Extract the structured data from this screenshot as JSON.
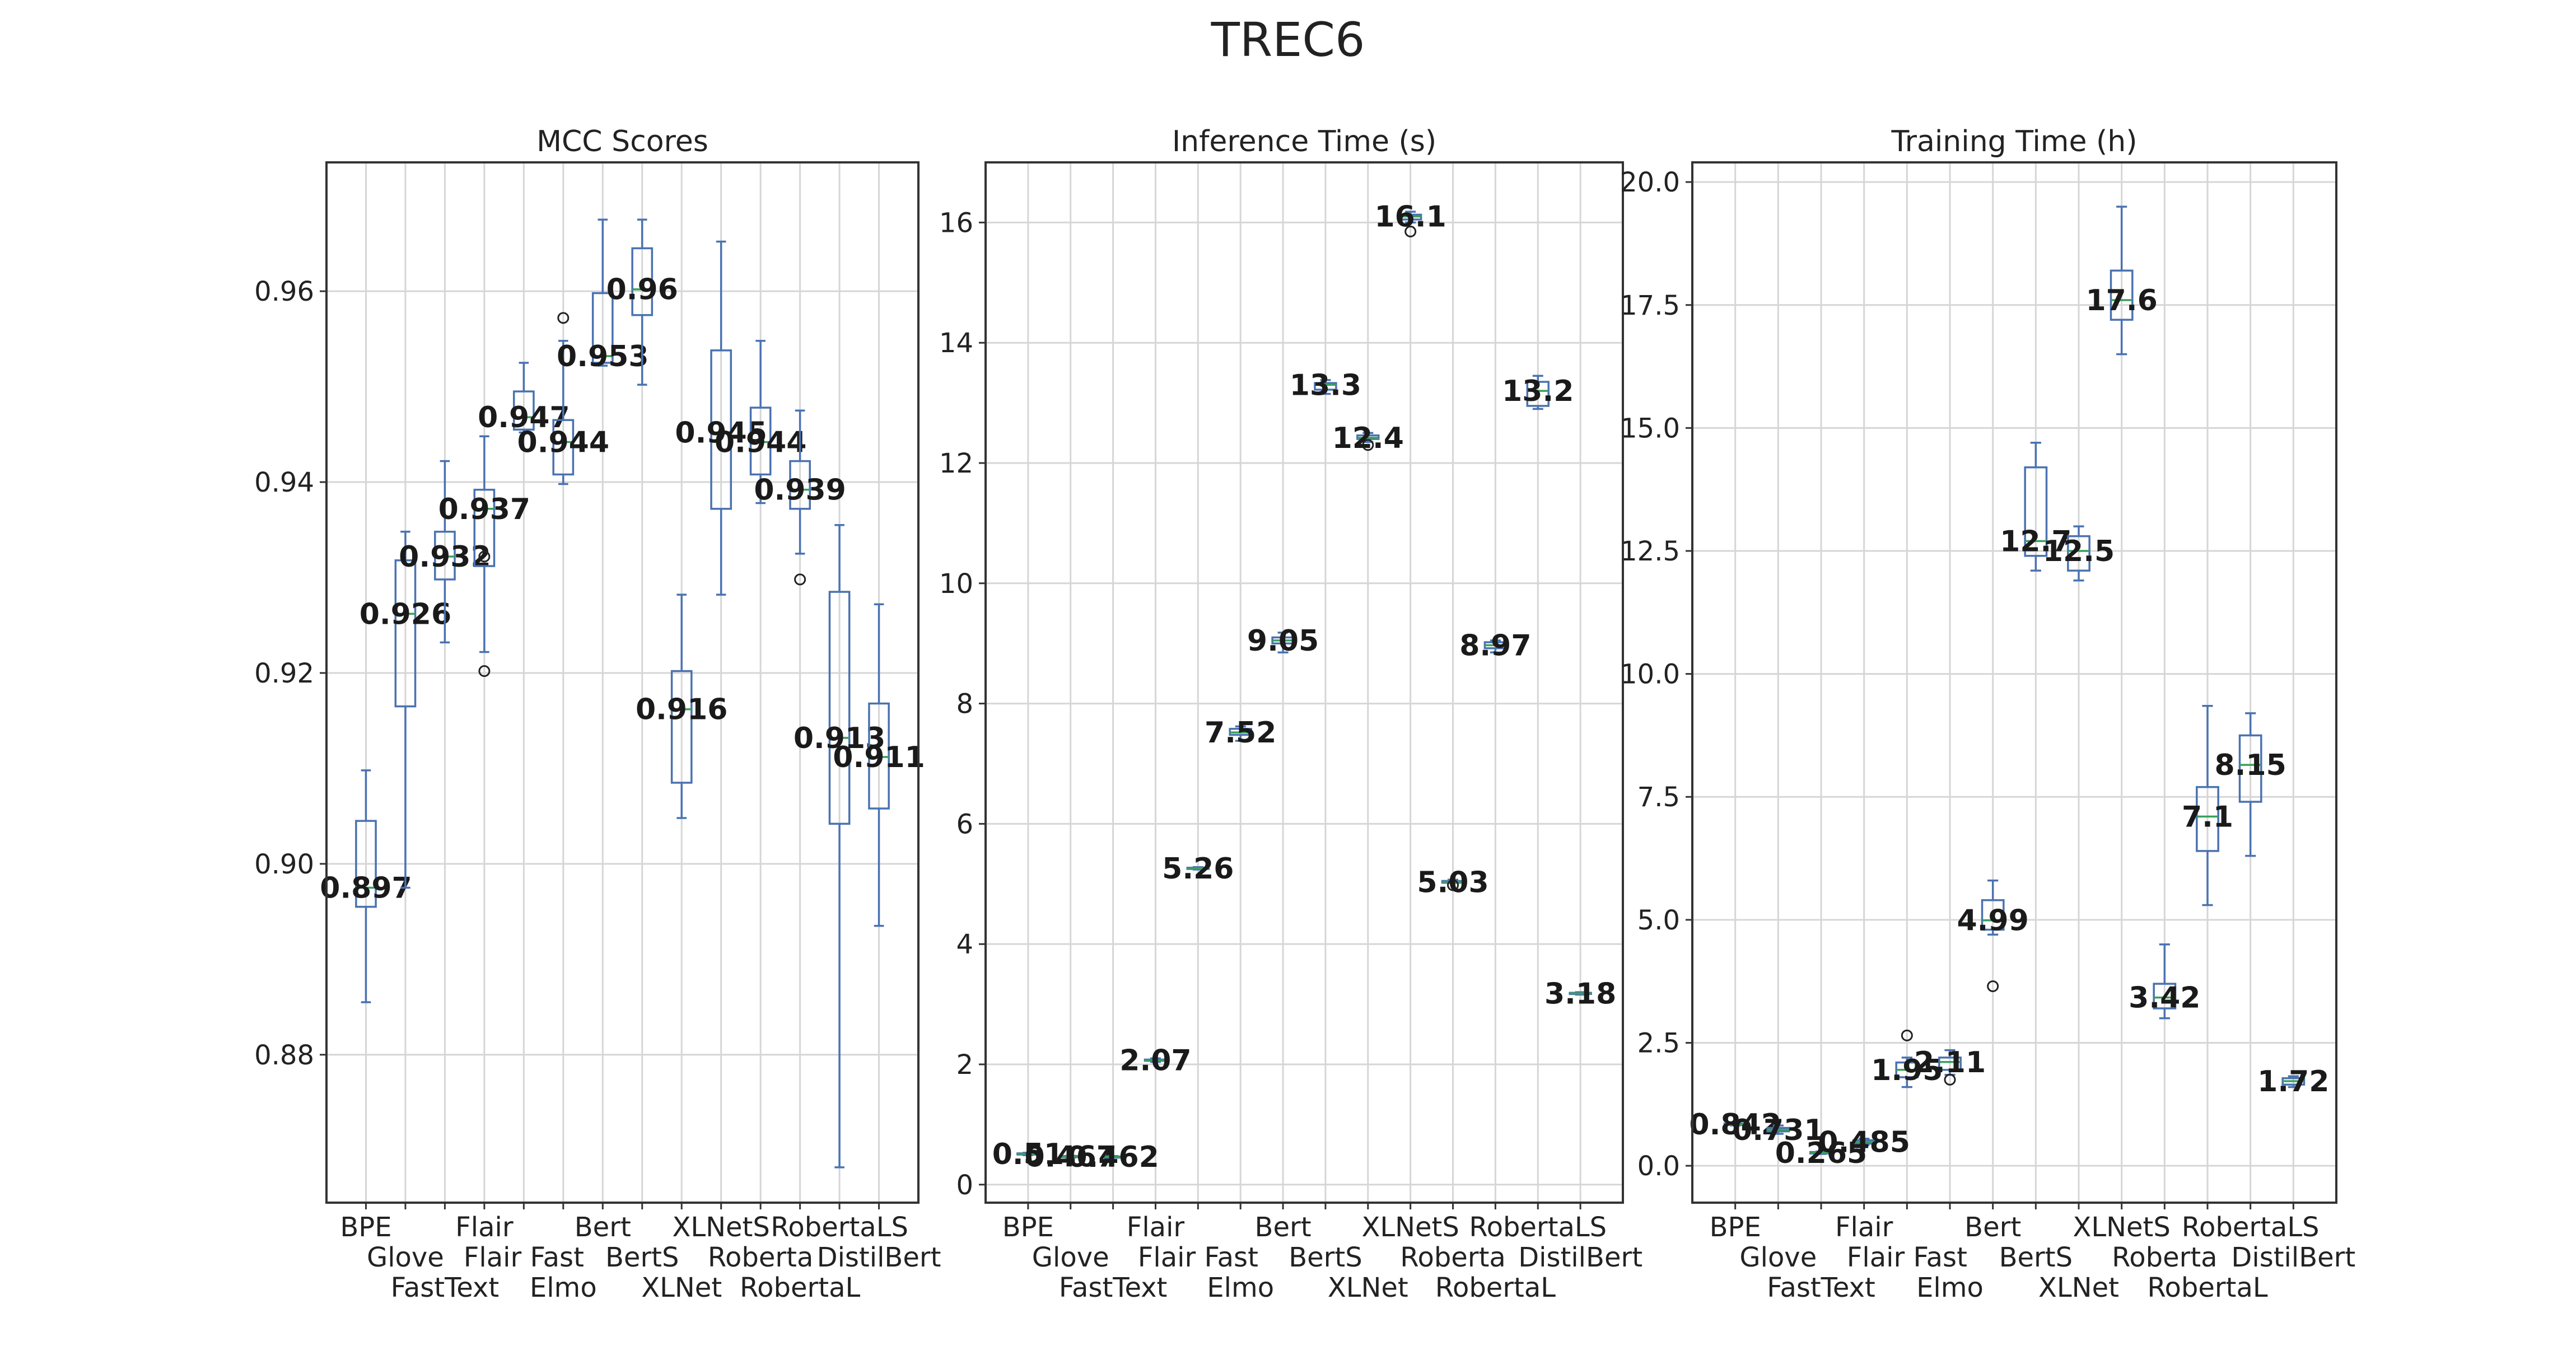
{
  "title": "TREC6",
  "chart_data": [
    {
      "type": "box",
      "title": "MCC Scores",
      "categories": [
        "BPE",
        "Glove",
        "FastText",
        "Flair",
        "Flair Fast",
        "Elmo",
        "Bert",
        "BertS",
        "XLNet",
        "XLNetS",
        "Roberta",
        "RobertaL",
        "RobertaLS",
        "DistilBert"
      ],
      "yticks": [
        "0.88",
        "0.90",
        "0.92",
        "0.94",
        "0.96"
      ],
      "ylim": [
        0.8645,
        0.9735
      ],
      "grid": true,
      "boxes": [
        {
          "whislo": 0.8855,
          "q1": 0.8955,
          "med": 0.8975,
          "q3": 0.9045,
          "whishi": 0.9098,
          "fliers": [],
          "label": "0.897"
        },
        {
          "whislo": 0.8975,
          "q1": 0.9165,
          "med": 0.9262,
          "q3": 0.9318,
          "whishi": 0.9348,
          "fliers": [],
          "label": "0.926"
        },
        {
          "whislo": 0.9232,
          "q1": 0.9298,
          "med": 0.9322,
          "q3": 0.9348,
          "whishi": 0.9422,
          "fliers": [],
          "label": "0.932"
        },
        {
          "whislo": 0.9222,
          "q1": 0.9312,
          "med": 0.9372,
          "q3": 0.9392,
          "whishi": 0.9448,
          "fliers": [
            0.9322,
            0.9202
          ],
          "label": "0.937"
        },
        {
          "whislo": 0.9452,
          "q1": 0.9455,
          "med": 0.9468,
          "q3": 0.9495,
          "whishi": 0.9525,
          "fliers": [],
          "label": "0.947"
        },
        {
          "whislo": 0.9398,
          "q1": 0.9408,
          "med": 0.9442,
          "q3": 0.9465,
          "whishi": 0.9548,
          "fliers": [
            0.9572
          ],
          "label": "0.944"
        },
        {
          "whislo": 0.9522,
          "q1": 0.9525,
          "med": 0.9532,
          "q3": 0.9598,
          "whishi": 0.9675,
          "fliers": [],
          "label": "0.953"
        },
        {
          "whislo": 0.9502,
          "q1": 0.9575,
          "med": 0.9602,
          "q3": 0.9645,
          "whishi": 0.9675,
          "fliers": [],
          "label": "0.96"
        },
        {
          "whislo": 0.9048,
          "q1": 0.9085,
          "med": 0.9162,
          "q3": 0.9202,
          "whishi": 0.9282,
          "fliers": [],
          "label": "0.916"
        },
        {
          "whislo": 0.9282,
          "q1": 0.9372,
          "med": 0.9452,
          "q3": 0.9538,
          "whishi": 0.9652,
          "fliers": [],
          "label": "0.945"
        },
        {
          "whislo": 0.9378,
          "q1": 0.9408,
          "med": 0.9442,
          "q3": 0.9478,
          "whishi": 0.9548,
          "fliers": [],
          "label": "0.944"
        },
        {
          "whislo": 0.9325,
          "q1": 0.9372,
          "med": 0.9392,
          "q3": 0.9422,
          "whishi": 0.9475,
          "fliers": [
            0.9298
          ],
          "label": "0.939"
        },
        {
          "whislo": 0.8682,
          "q1": 0.9042,
          "med": 0.9132,
          "q3": 0.9285,
          "whishi": 0.9355,
          "fliers": [],
          "label": "0.913"
        },
        {
          "whislo": 0.8935,
          "q1": 0.9058,
          "med": 0.9112,
          "q3": 0.9168,
          "whishi": 0.9272,
          "fliers": [],
          "label": "0.911"
        }
      ]
    },
    {
      "type": "box",
      "title": "Inference Time (s)",
      "categories": [
        "BPE",
        "Glove",
        "FastText",
        "Flair",
        "Flair Fast",
        "Elmo",
        "Bert",
        "BertS",
        "XLNet",
        "XLNetS",
        "Roberta",
        "RobertaL",
        "RobertaLS",
        "DistilBert"
      ],
      "yticks": [
        "0",
        "2",
        "4",
        "6",
        "8",
        "10",
        "12",
        "14",
        "16"
      ],
      "ylim": [
        -0.3,
        17.0
      ],
      "grid": true,
      "boxes": [
        {
          "whislo": 0.49,
          "q1": 0.5,
          "med": 0.51,
          "q3": 0.52,
          "whishi": 0.53,
          "fliers": [],
          "label": "0.51"
        },
        {
          "whislo": 0.45,
          "q1": 0.46,
          "med": 0.467,
          "q3": 0.475,
          "whishi": 0.48,
          "fliers": [],
          "label": "0.467"
        },
        {
          "whislo": 0.45,
          "q1": 0.455,
          "med": 0.462,
          "q3": 0.468,
          "whishi": 0.475,
          "fliers": [],
          "label": "0.462"
        },
        {
          "whislo": 2.04,
          "q1": 2.06,
          "med": 2.07,
          "q3": 2.08,
          "whishi": 2.1,
          "fliers": [],
          "label": "2.07"
        },
        {
          "whislo": 5.24,
          "q1": 5.25,
          "med": 5.26,
          "q3": 5.27,
          "whishi": 5.28,
          "fliers": [],
          "label": "5.26"
        },
        {
          "whislo": 7.38,
          "q1": 7.48,
          "med": 7.52,
          "q3": 7.58,
          "whishi": 7.62,
          "fliers": [],
          "label": "7.52"
        },
        {
          "whislo": 8.85,
          "q1": 9.0,
          "med": 9.05,
          "q3": 9.1,
          "whishi": 9.18,
          "fliers": [],
          "label": "9.05"
        },
        {
          "whislo": 13.15,
          "q1": 13.22,
          "med": 13.3,
          "q3": 13.33,
          "whishi": 13.38,
          "fliers": [],
          "label": "13.3"
        },
        {
          "whislo": 12.35,
          "q1": 12.4,
          "med": 12.42,
          "q3": 12.46,
          "whishi": 12.5,
          "fliers": [
            12.3
          ],
          "label": "12.4"
        },
        {
          "whislo": 16.0,
          "q1": 16.05,
          "med": 16.1,
          "q3": 16.13,
          "whishi": 16.18,
          "fliers": [
            15.85
          ],
          "label": "16.1"
        },
        {
          "whislo": 5.02,
          "q1": 5.02,
          "med": 5.03,
          "q3": 5.05,
          "whishi": 5.07,
          "fliers": [
            4.98
          ],
          "label": "5.03"
        },
        {
          "whislo": 8.85,
          "q1": 8.92,
          "med": 8.97,
          "q3": 9.02,
          "whishi": 9.05,
          "fliers": [],
          "label": "8.97"
        },
        {
          "whislo": 12.9,
          "q1": 12.95,
          "med": 13.2,
          "q3": 13.35,
          "whishi": 13.45,
          "fliers": [],
          "label": "13.2"
        },
        {
          "whislo": 3.16,
          "q1": 3.17,
          "med": 3.18,
          "q3": 3.19,
          "whishi": 3.2,
          "fliers": [],
          "label": "3.18"
        }
      ]
    },
    {
      "type": "box",
      "title": "Training Time (h)",
      "categories": [
        "BPE",
        "Glove",
        "FastText",
        "Flair",
        "Flair Fast",
        "Elmo",
        "Bert",
        "BertS",
        "XLNet",
        "XLNetS",
        "Roberta",
        "RobertaL",
        "RobertaLS",
        "DistilBert"
      ],
      "yticks": [
        "0.0",
        "2.5",
        "5.0",
        "7.5",
        "10.0",
        "12.5",
        "15.0",
        "17.5",
        "20.0"
      ],
      "ylim": [
        -0.75,
        20.4
      ],
      "grid": true,
      "boxes": [
        {
          "whislo": 0.82,
          "q1": 0.83,
          "med": 0.842,
          "q3": 0.86,
          "whishi": 0.88,
          "fliers": [],
          "label": "0.842"
        },
        {
          "whislo": 0.65,
          "q1": 0.7,
          "med": 0.731,
          "q3": 0.77,
          "whishi": 0.82,
          "fliers": [],
          "label": "0.731"
        },
        {
          "whislo": 0.24,
          "q1": 0.25,
          "med": 0.265,
          "q3": 0.28,
          "whishi": 0.29,
          "fliers": [],
          "label": "0.265"
        },
        {
          "whislo": 0.42,
          "q1": 0.45,
          "med": 0.485,
          "q3": 0.52,
          "whishi": 0.55,
          "fliers": [],
          "label": "0.485"
        },
        {
          "whislo": 1.6,
          "q1": 1.8,
          "med": 1.95,
          "q3": 2.1,
          "whishi": 2.2,
          "fliers": [
            2.65
          ],
          "label": "1.95"
        },
        {
          "whislo": 1.85,
          "q1": 1.95,
          "med": 2.11,
          "q3": 2.2,
          "whishi": 2.35,
          "fliers": [
            1.75
          ],
          "label": "2.11"
        },
        {
          "whislo": 4.7,
          "q1": 4.8,
          "med": 4.99,
          "q3": 5.4,
          "whishi": 5.8,
          "fliers": [
            3.65
          ],
          "label": "4.99"
        },
        {
          "whislo": 12.1,
          "q1": 12.4,
          "med": 12.7,
          "q3": 14.2,
          "whishi": 14.7,
          "fliers": [],
          "label": "12.7"
        },
        {
          "whislo": 11.9,
          "q1": 12.1,
          "med": 12.5,
          "q3": 12.8,
          "whishi": 13.0,
          "fliers": [],
          "label": "12.5"
        },
        {
          "whislo": 16.5,
          "q1": 17.2,
          "med": 17.6,
          "q3": 18.2,
          "whishi": 19.5,
          "fliers": [],
          "label": "17.6"
        },
        {
          "whislo": 3.0,
          "q1": 3.2,
          "med": 3.42,
          "q3": 3.7,
          "whishi": 4.5,
          "fliers": [],
          "label": "3.42"
        },
        {
          "whislo": 5.3,
          "q1": 6.4,
          "med": 7.1,
          "q3": 7.7,
          "whishi": 9.35,
          "fliers": [],
          "label": "7.1"
        },
        {
          "whislo": 6.3,
          "q1": 7.4,
          "med": 8.15,
          "q3": 8.75,
          "whishi": 9.2,
          "fliers": [],
          "label": "8.15"
        },
        {
          "whislo": 1.6,
          "q1": 1.65,
          "med": 1.72,
          "q3": 1.78,
          "whishi": 1.82,
          "fliers": [],
          "label": "1.72"
        }
      ]
    }
  ]
}
